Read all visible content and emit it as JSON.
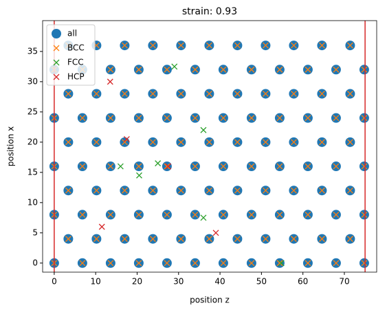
{
  "chart_data": {
    "type": "scatter",
    "title": "strain: 0.93",
    "xlabel": "position z",
    "ylabel": "position x",
    "xlim": [
      -2.8,
      77.8
    ],
    "ylim": [
      -1.5,
      40.1
    ],
    "xticks": [
      0,
      10,
      20,
      30,
      40,
      50,
      60,
      70
    ],
    "yticks": [
      0,
      5,
      10,
      15,
      20,
      25,
      30,
      35
    ],
    "legend": "upper left",
    "vlines": [
      0,
      75
    ],
    "vline_color": "#d62728",
    "series": [
      {
        "name": "all",
        "marker": "o",
        "color": "#1f77b4",
        "x": [
          0,
          6.8,
          13.6,
          20.4,
          27.2,
          34,
          40.8,
          47.6,
          54.4,
          61.2,
          68,
          74.8,
          3.4,
          10.2,
          17,
          23.8,
          30.6,
          37.4,
          44.2,
          51,
          57.8,
          64.6,
          71.4,
          0,
          6.8,
          13.6,
          20.4,
          27.2,
          34,
          40.8,
          47.6,
          54.4,
          61.2,
          68,
          74.8,
          3.4,
          10.2,
          17,
          23.8,
          30.6,
          37.4,
          44.2,
          51,
          57.8,
          64.6,
          71.4,
          0,
          6.8,
          13.6,
          20.4,
          27.2,
          34,
          40.8,
          47.6,
          54.4,
          61.2,
          68,
          74.8,
          3.4,
          10.2,
          17,
          23.8,
          30.6,
          37.4,
          44.2,
          51,
          57.8,
          64.6,
          71.4,
          0,
          6.8,
          13.6,
          20.4,
          27.2,
          34,
          40.8,
          47.6,
          54.4,
          61.2,
          68,
          74.8,
          3.4,
          10.2,
          17,
          23.8,
          30.6,
          37.4,
          44.2,
          51,
          57.8,
          64.6,
          71.4,
          0,
          6.8,
          13.6,
          20.4,
          27.2,
          34,
          40.8,
          47.6,
          54.4,
          61.2,
          68,
          74.8,
          3.4,
          10.2,
          17,
          23.8,
          30.6,
          37.4,
          44.2,
          51,
          57.8,
          64.6,
          71.4
        ],
        "y": [
          0,
          0,
          0,
          0,
          0,
          0,
          0,
          0,
          0,
          0,
          0,
          0,
          4,
          4,
          4,
          4,
          4,
          4,
          4,
          4,
          4,
          4,
          4,
          8,
          8,
          8,
          8,
          8,
          8,
          8,
          8,
          8,
          8,
          8,
          8,
          12,
          12,
          12,
          12,
          12,
          12,
          12,
          12,
          12,
          12,
          12,
          16,
          16,
          16,
          16,
          16,
          16,
          16,
          16,
          16,
          16,
          16,
          16,
          20,
          20,
          20,
          20,
          20,
          20,
          20,
          20,
          20,
          20,
          20,
          24,
          24,
          24,
          24,
          24,
          24,
          24,
          24,
          24,
          24,
          24,
          24,
          28,
          28,
          28,
          28,
          28,
          28,
          28,
          28,
          28,
          28,
          28,
          32,
          32,
          32,
          32,
          32,
          32,
          32,
          32,
          32,
          32,
          32,
          32,
          36,
          36,
          36,
          36,
          36,
          36,
          36,
          36,
          36,
          36,
          36
        ]
      },
      {
        "name": "BCC",
        "marker": "x",
        "color": "#ff7f0e",
        "x": [
          0,
          6.8,
          13.6,
          20.4,
          27.2,
          34,
          40.8,
          47.6,
          54.4,
          61.2,
          68,
          74.8,
          3.4,
          10.2,
          17,
          23.8,
          30.6,
          37.4,
          44.2,
          51,
          57.8,
          64.6,
          71.4,
          0,
          6.8,
          13.6,
          20.4,
          27.2,
          34,
          40.8,
          47.6,
          54.4,
          61.2,
          68,
          74.8,
          3.4,
          10.2,
          17,
          23.8,
          30.6,
          37.4,
          44.2,
          51,
          57.8,
          64.6,
          71.4,
          0,
          6.8,
          13.6,
          20.4,
          27.2,
          34,
          40.8,
          47.6,
          54.4,
          61.2,
          68,
          74.8,
          3.4,
          10.2,
          17,
          23.8,
          30.6,
          37.4,
          44.2,
          51,
          57.8,
          64.6,
          71.4,
          0,
          6.8,
          13.6,
          20.4,
          27.2,
          34,
          40.8,
          47.6,
          54.4,
          61.2,
          68,
          74.8,
          3.4,
          10.2,
          17,
          23.8,
          30.6,
          37.4,
          44.2,
          51,
          57.8,
          64.6,
          71.4,
          0,
          6.8,
          13.6,
          20.4,
          27.2,
          34,
          40.8,
          47.6,
          54.4,
          61.2,
          68,
          74.8,
          3.4,
          10.2,
          17,
          23.8,
          30.6,
          37.4,
          44.2,
          51,
          57.8,
          64.6,
          71.4
        ],
        "y": [
          0,
          0,
          0,
          0,
          0,
          0,
          0,
          0,
          0,
          0,
          0,
          0,
          4,
          4,
          4,
          4,
          4,
          4,
          4,
          4,
          4,
          4,
          4,
          8,
          8,
          8,
          8,
          8,
          8,
          8,
          8,
          8,
          8,
          8,
          8,
          12,
          12,
          12,
          12,
          12,
          12,
          12,
          12,
          12,
          12,
          12,
          16,
          16,
          16,
          16,
          16,
          16,
          16,
          16,
          16,
          16,
          16,
          16,
          20,
          20,
          20,
          20,
          20,
          20,
          20,
          20,
          20,
          20,
          20,
          24,
          24,
          24,
          24,
          24,
          24,
          24,
          24,
          24,
          24,
          24,
          24,
          28,
          28,
          28,
          28,
          28,
          28,
          28,
          28,
          28,
          28,
          28,
          32,
          32,
          32,
          32,
          32,
          32,
          32,
          32,
          32,
          32,
          32,
          32,
          36,
          36,
          36,
          36,
          36,
          36,
          36,
          36,
          36,
          36,
          36
        ]
      },
      {
        "name": "FCC",
        "marker": "x",
        "color": "#2ca02c",
        "x": [
          16,
          20.5,
          25,
          36,
          29,
          36,
          54.8
        ],
        "y": [
          16,
          14.5,
          16.5,
          22,
          32.5,
          7.5,
          0
        ]
      },
      {
        "name": "HCP",
        "marker": "x",
        "color": "#d62728",
        "x": [
          11.5,
          17.5,
          27.5,
          39,
          13.5
        ],
        "y": [
          6,
          20.5,
          16,
          5,
          30
        ]
      }
    ]
  }
}
